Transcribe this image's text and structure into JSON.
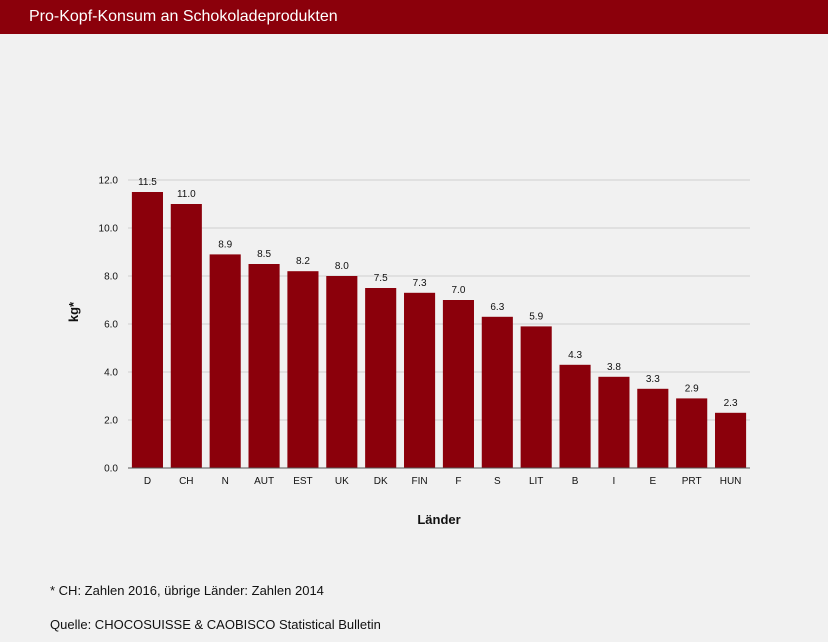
{
  "header": {
    "title": "Pro-Kopf-Konsum an Schokoladeprodukten"
  },
  "chart_data": {
    "type": "bar",
    "categories": [
      "D",
      "CH",
      "N",
      "AUT",
      "EST",
      "UK",
      "DK",
      "FIN",
      "F",
      "S",
      "LIT",
      "B",
      "I",
      "E",
      "PRT",
      "HUN"
    ],
    "values": [
      11.5,
      11.0,
      8.9,
      8.5,
      8.2,
      8.0,
      7.5,
      7.3,
      7.0,
      6.3,
      5.9,
      4.3,
      3.8,
      3.3,
      2.9,
      2.3
    ],
    "data_labels": [
      "11.5",
      "11.0",
      "8.9",
      "8.5",
      "8.2",
      "8.0",
      "7.5",
      "7.3",
      "7.0",
      "6.3",
      "5.9",
      "4.3",
      "3.8",
      "3.3",
      "2.9",
      "2.3"
    ],
    "xlabel": "Länder",
    "ylabel": "kg*",
    "ylim": [
      0,
      12
    ],
    "yticks": [
      "0.0",
      "2.0",
      "4.0",
      "6.0",
      "8.0",
      "10.0",
      "12.0"
    ],
    "grid": true,
    "bar_color": "#8b000b"
  },
  "footer": {
    "note": "* CH: Zahlen 2016, übrige Länder: Zahlen 2014",
    "source": "Quelle: CHOCOSUISSE & CAOBISCO Statistical Bulletin"
  }
}
